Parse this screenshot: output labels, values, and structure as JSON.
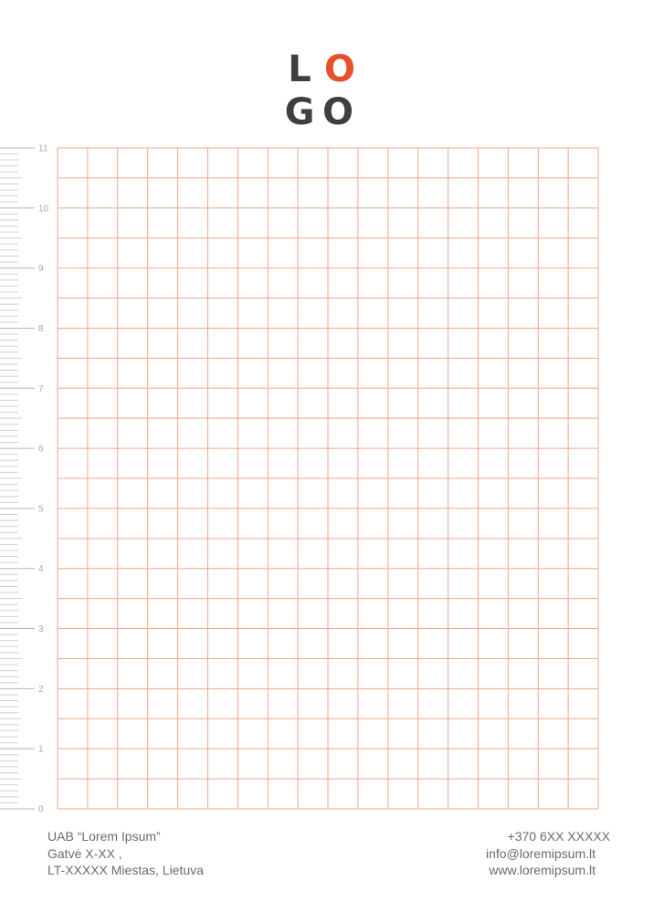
{
  "logo": {
    "letters": [
      "L",
      "O",
      "G",
      "O"
    ]
  },
  "ruler": {
    "labels": [
      0,
      1,
      2,
      3,
      4,
      5,
      6,
      7,
      8,
      9,
      10,
      11
    ]
  },
  "footer": {
    "left": [
      "UAB “Lorem Ipsum”",
      "Gatvė X-XX ,",
      "LT-XXXXX Miestas, Lietuva"
    ],
    "right": [
      "+370 6XX XXXXX",
      "info@loremipsum.lt",
      "www.loremipsum.lt"
    ]
  }
}
